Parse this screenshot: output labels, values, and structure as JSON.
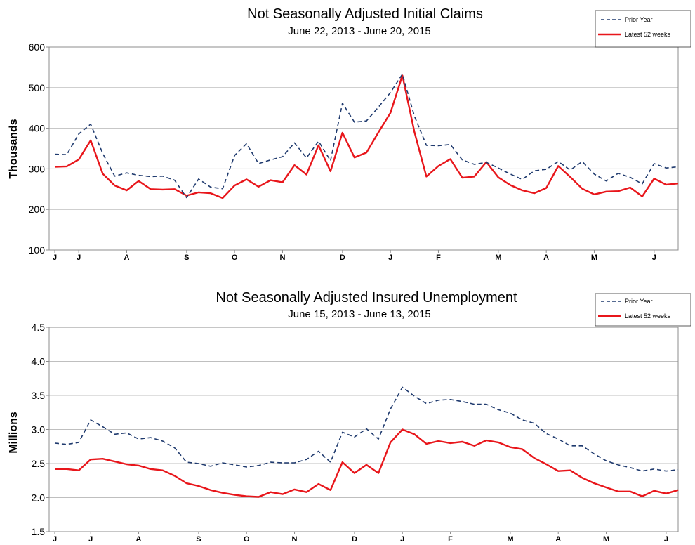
{
  "colors": {
    "prior_year": "#1f3a6e",
    "latest": "#e8161b"
  },
  "chart_data": [
    {
      "type": "line",
      "title": "Not Seasonally Adjusted Initial Claims",
      "subtitle": "June 22, 2013  -  June 20, 2015",
      "ylabel": "Thousands",
      "xlabel": "",
      "ylim": [
        100,
        600
      ],
      "yticks": [
        100,
        200,
        300,
        400,
        500,
        600
      ],
      "grid": true,
      "legend_position": "top-right",
      "month_ticks": [
        {
          "label": "J",
          "week": 0
        },
        {
          "label": "J",
          "week": 2
        },
        {
          "label": "A",
          "week": 6
        },
        {
          "label": "S",
          "week": 11
        },
        {
          "label": "O",
          "week": 15
        },
        {
          "label": "N",
          "week": 19
        },
        {
          "label": "D",
          "week": 24
        },
        {
          "label": "J",
          "week": 28
        },
        {
          "label": "F",
          "week": 32
        },
        {
          "label": "M",
          "week": 37
        },
        {
          "label": "A",
          "week": 41
        },
        {
          "label": "M",
          "week": 45
        },
        {
          "label": "J",
          "week": 50
        }
      ],
      "series": [
        {
          "name": "Prior Year",
          "style": "dashed",
          "values": [
            336,
            335,
            386,
            410,
            338,
            282,
            290,
            284,
            281,
            282,
            272,
            229,
            275,
            255,
            251,
            333,
            362,
            313,
            322,
            330,
            364,
            327,
            368,
            320,
            462,
            415,
            418,
            452,
            488,
            533,
            430,
            358,
            357,
            360,
            322,
            311,
            316,
            302,
            287,
            274,
            295,
            299,
            318,
            297,
            318,
            287,
            270,
            289,
            279,
            263,
            313,
            302,
            305
          ]
        },
        {
          "name": "Latest 52 weeks",
          "style": "solid",
          "values": [
            305,
            306,
            323,
            370,
            288,
            259,
            247,
            270,
            250,
            249,
            250,
            234,
            242,
            240,
            228,
            259,
            274,
            256,
            272,
            267,
            309,
            286,
            358,
            294,
            389,
            328,
            340,
            390,
            438,
            530,
            391,
            281,
            307,
            324,
            278,
            281,
            317,
            279,
            260,
            247,
            240,
            253,
            307,
            280,
            251,
            237,
            244,
            245,
            254,
            232,
            276,
            261,
            264
          ]
        }
      ]
    },
    {
      "type": "line",
      "title": "Not Seasonally Adjusted Insured Unemployment",
      "subtitle": "June 15, 2013  -  June 13, 2015",
      "ylabel": "Millions",
      "xlabel": "",
      "ylim": [
        1.5,
        4.5
      ],
      "yticks": [
        "1.5",
        "2.0",
        "2.5",
        "3.0",
        "3.5",
        "4.0",
        "4.5"
      ],
      "grid": true,
      "legend_position": "top-right",
      "month_ticks": [
        {
          "label": "J",
          "week": 0
        },
        {
          "label": "J",
          "week": 3
        },
        {
          "label": "A",
          "week": 7
        },
        {
          "label": "S",
          "week": 12
        },
        {
          "label": "O",
          "week": 16
        },
        {
          "label": "N",
          "week": 20
        },
        {
          "label": "D",
          "week": 25
        },
        {
          "label": "J",
          "week": 29
        },
        {
          "label": "F",
          "week": 33
        },
        {
          "label": "M",
          "week": 38
        },
        {
          "label": "A",
          "week": 42
        },
        {
          "label": "M",
          "week": 46
        },
        {
          "label": "J",
          "week": 51
        }
      ],
      "series": [
        {
          "name": "Prior Year",
          "style": "dashed",
          "values": [
            2.8,
            2.78,
            2.81,
            3.14,
            3.04,
            2.93,
            2.95,
            2.86,
            2.88,
            2.83,
            2.73,
            2.52,
            2.5,
            2.46,
            2.51,
            2.48,
            2.45,
            2.47,
            2.52,
            2.51,
            2.51,
            2.56,
            2.68,
            2.52,
            2.96,
            2.89,
            3.01,
            2.86,
            3.3,
            3.62,
            3.49,
            3.38,
            3.43,
            3.44,
            3.41,
            3.37,
            3.37,
            3.29,
            3.24,
            3.14,
            3.09,
            2.94,
            2.86,
            2.76,
            2.76,
            2.64,
            2.54,
            2.48,
            2.44,
            2.39,
            2.42,
            2.39,
            2.41
          ]
        },
        {
          "name": "Latest 52 weeks",
          "style": "solid",
          "values": [
            2.42,
            2.42,
            2.4,
            2.56,
            2.57,
            2.53,
            2.49,
            2.47,
            2.42,
            2.4,
            2.32,
            2.21,
            2.17,
            2.11,
            2.07,
            2.04,
            2.02,
            2.01,
            2.08,
            2.05,
            2.12,
            2.08,
            2.2,
            2.11,
            2.52,
            2.36,
            2.48,
            2.36,
            2.81,
            3.0,
            2.93,
            2.79,
            2.83,
            2.8,
            2.82,
            2.76,
            2.84,
            2.81,
            2.74,
            2.71,
            2.58,
            2.49,
            2.39,
            2.4,
            2.29,
            2.21,
            2.15,
            2.09,
            2.09,
            2.02,
            2.1,
            2.06,
            2.11
          ]
        }
      ]
    }
  ]
}
